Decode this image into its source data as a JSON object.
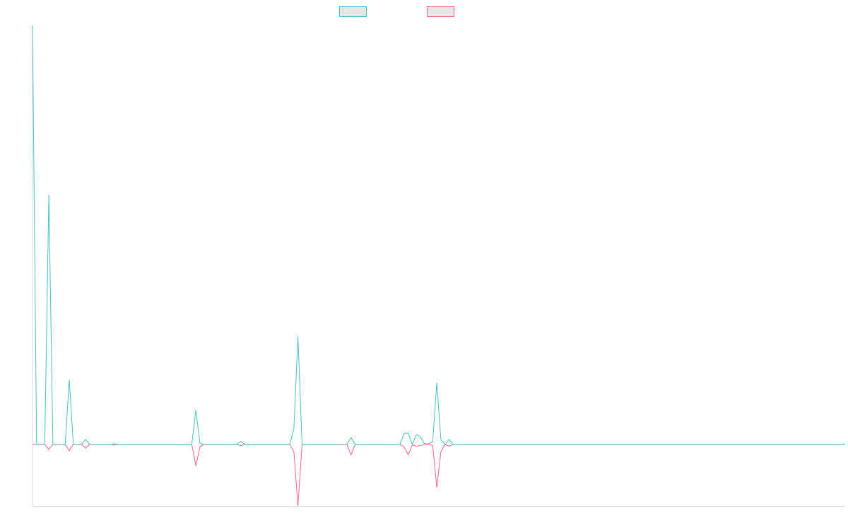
{
  "colors": {
    "series_1": "#4bc0c0",
    "series_2": "#ff6384",
    "axis": "#d9d9d9",
    "legend_fill": "#e6e6e6"
  },
  "chart_data": {
    "type": "line",
    "legend": "top-center",
    "grid": false,
    "x_count": 200,
    "ylim": [
      -100,
      680
    ],
    "series": [
      {
        "color": "#4bc0c0",
        "points": [
          [
            0,
            680
          ],
          [
            1,
            0
          ],
          [
            2,
            0
          ],
          [
            3,
            0
          ],
          [
            4,
            405
          ],
          [
            5,
            0
          ],
          [
            6,
            0
          ],
          [
            7,
            0
          ],
          [
            8,
            0
          ],
          [
            9,
            105
          ],
          [
            10,
            0
          ],
          [
            11,
            0
          ],
          [
            12,
            0
          ],
          [
            13,
            8
          ],
          [
            14,
            0
          ],
          [
            15,
            0
          ],
          [
            16,
            0
          ],
          [
            17,
            0
          ],
          [
            18,
            0
          ],
          [
            19,
            0
          ],
          [
            20,
            1
          ],
          [
            21,
            0
          ],
          [
            22,
            0
          ],
          [
            39,
            0
          ],
          [
            40,
            56
          ],
          [
            41,
            2
          ],
          [
            42,
            0
          ],
          [
            50,
            0
          ],
          [
            51,
            5
          ],
          [
            52,
            0
          ],
          [
            63,
            0
          ],
          [
            64,
            25
          ],
          [
            65,
            175
          ],
          [
            66,
            0
          ],
          [
            77,
            0
          ],
          [
            78,
            11
          ],
          [
            79,
            0
          ],
          [
            90,
            0
          ],
          [
            91,
            18
          ],
          [
            92,
            18
          ],
          [
            93,
            0
          ],
          [
            94,
            16
          ],
          [
            95,
            12
          ],
          [
            96,
            1
          ],
          [
            97,
            1
          ],
          [
            98,
            4
          ],
          [
            99,
            100
          ],
          [
            100,
            8
          ],
          [
            101,
            0
          ],
          [
            102,
            8
          ],
          [
            103,
            0
          ],
          [
            199,
            0
          ]
        ]
      },
      {
        "color": "#ff6384",
        "points": [
          [
            0,
            0
          ],
          [
            1,
            0
          ],
          [
            2,
            0
          ],
          [
            3,
            0
          ],
          [
            4,
            -8
          ],
          [
            5,
            0
          ],
          [
            6,
            0
          ],
          [
            7,
            0
          ],
          [
            8,
            0
          ],
          [
            9,
            -10
          ],
          [
            10,
            0
          ],
          [
            11,
            0
          ],
          [
            12,
            0
          ],
          [
            13,
            -6
          ],
          [
            14,
            0
          ],
          [
            15,
            0
          ],
          [
            16,
            0
          ],
          [
            17,
            0
          ],
          [
            18,
            0
          ],
          [
            19,
            0
          ],
          [
            20,
            -1
          ],
          [
            21,
            0
          ],
          [
            22,
            0
          ],
          [
            39,
            0
          ],
          [
            40,
            -35
          ],
          [
            41,
            -4
          ],
          [
            42,
            0
          ],
          [
            50,
            0
          ],
          [
            51,
            -2
          ],
          [
            52,
            0
          ],
          [
            63,
            0
          ],
          [
            64,
            -12
          ],
          [
            65,
            -100
          ],
          [
            66,
            0
          ],
          [
            77,
            0
          ],
          [
            78,
            -17
          ],
          [
            79,
            0
          ],
          [
            90,
            0
          ],
          [
            91,
            -4
          ],
          [
            92,
            -17
          ],
          [
            93,
            -1
          ],
          [
            94,
            -3
          ],
          [
            95,
            -2
          ],
          [
            96,
            0
          ],
          [
            97,
            0
          ],
          [
            98,
            -2
          ],
          [
            99,
            -70
          ],
          [
            100,
            -12
          ],
          [
            101,
            0
          ],
          [
            102,
            -3
          ],
          [
            103,
            0
          ],
          [
            199,
            0
          ]
        ]
      }
    ]
  }
}
